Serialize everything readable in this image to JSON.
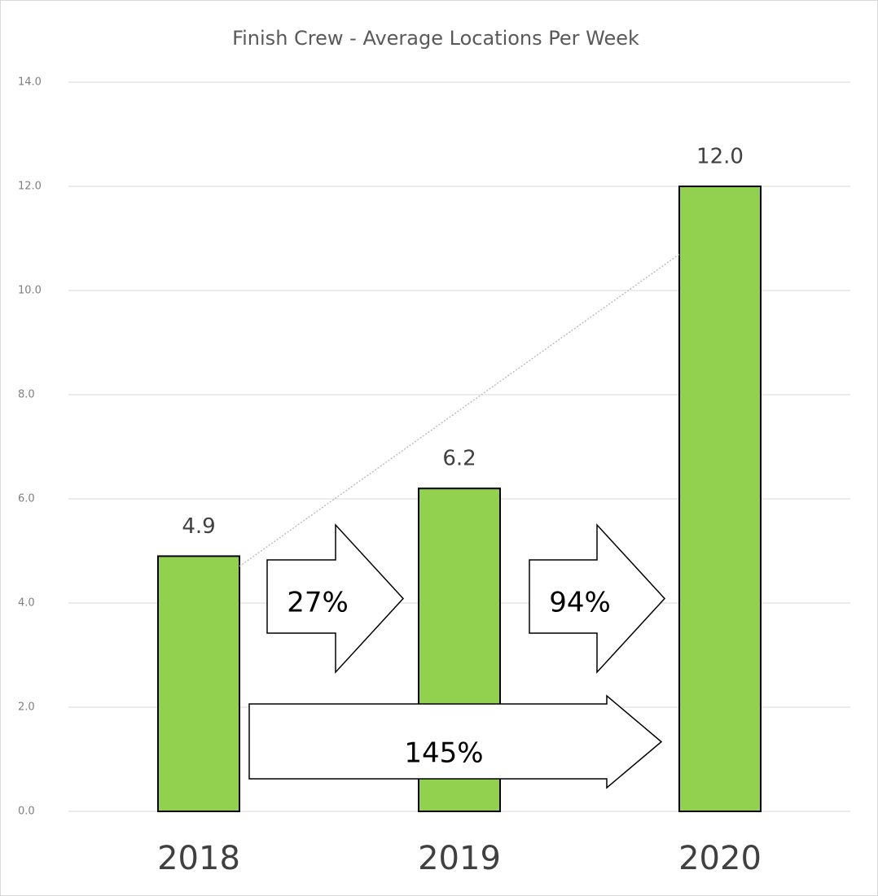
{
  "chart_data": {
    "type": "bar",
    "title": "Finish Crew - Average Locations Per Week",
    "categories": [
      "2018",
      "2019",
      "2020"
    ],
    "values": [
      4.9,
      6.2,
      12.0
    ],
    "value_labels": [
      "4.9",
      "6.2",
      "12.0"
    ],
    "color": "#92d050",
    "ylim": [
      0,
      14
    ],
    "yticks": [
      {
        "value": 0,
        "label": "0.0"
      },
      {
        "value": 2,
        "label": "2.0"
      },
      {
        "value": 4,
        "label": "4.0"
      },
      {
        "value": 6,
        "label": "6.0"
      },
      {
        "value": 8,
        "label": "8.0"
      },
      {
        "value": 10,
        "label": "10.0"
      },
      {
        "value": 12,
        "label": "12.0"
      },
      {
        "value": 14,
        "label": "14.0"
      }
    ],
    "grid": true,
    "trendline": true,
    "annotations": [
      "27%",
      "94%",
      "145%"
    ]
  }
}
